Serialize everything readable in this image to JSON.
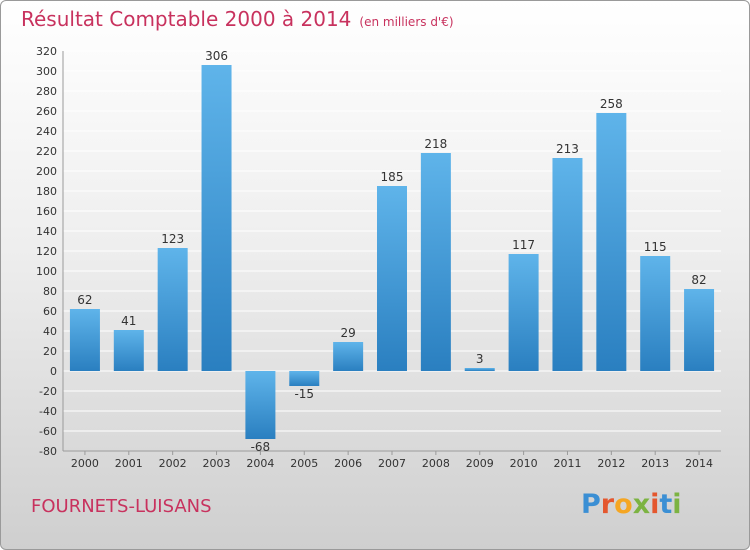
{
  "header": {
    "title": "Résultat Comptable 2000 à 2014",
    "subtitle": "(en milliers d'€)"
  },
  "footer": {
    "commune": "FOURNETS-LUISANS",
    "logo_text": "Proxiti"
  },
  "colors": {
    "title": "#c8325e",
    "bar_top": "#5fb4ea",
    "bar_bottom": "#2a7fc0",
    "grid": "#ffffff"
  },
  "chart_data": {
    "type": "bar",
    "title": "Résultat Comptable 2000 à 2014",
    "subtitle": "(en milliers d'€)",
    "categories": [
      "2000",
      "2001",
      "2002",
      "2003",
      "2004",
      "2005",
      "2006",
      "2007",
      "2008",
      "2009",
      "2010",
      "2011",
      "2012",
      "2013",
      "2014"
    ],
    "values": [
      62,
      41,
      123,
      306,
      -68,
      -15,
      29,
      185,
      218,
      3,
      117,
      213,
      258,
      115,
      82
    ],
    "value_labels": [
      "62",
      "41",
      "123",
      "306",
      "-68",
      "-15",
      "29",
      "185",
      "218",
      "3",
      "117",
      "213",
      "258",
      "115",
      "82"
    ],
    "ylim": [
      -80,
      320
    ],
    "yticks": [
      -80,
      -60,
      -40,
      -20,
      0,
      20,
      40,
      60,
      80,
      100,
      120,
      140,
      160,
      180,
      200,
      220,
      240,
      260,
      280,
      300,
      320
    ],
    "grid": true,
    "legend": "none"
  }
}
